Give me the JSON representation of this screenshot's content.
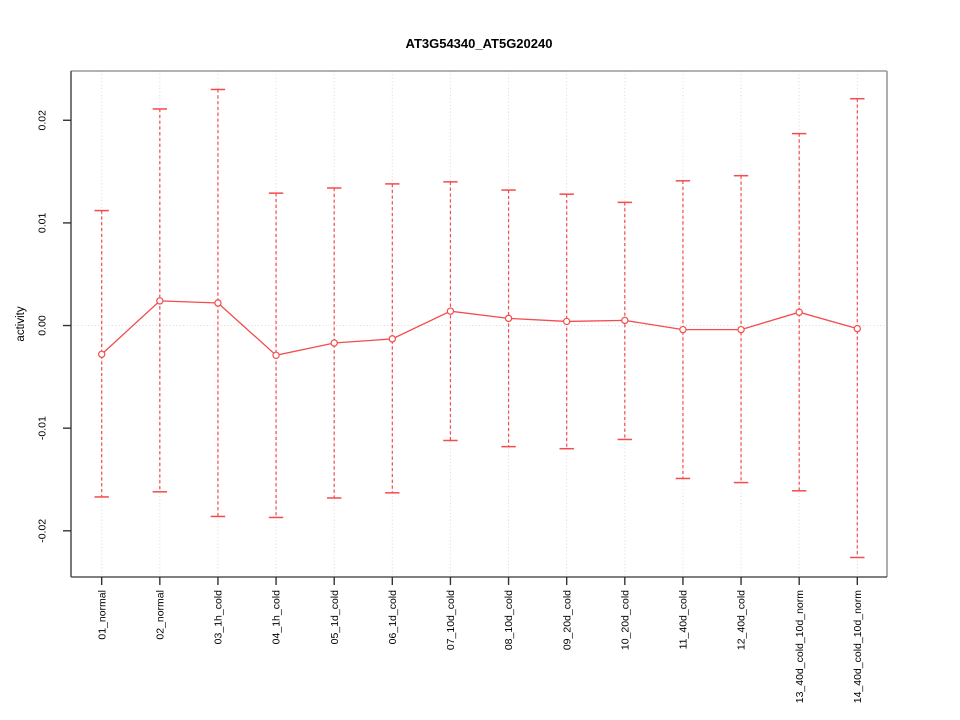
{
  "figure": {
    "background": "#ffffff"
  },
  "chart_data": {
    "type": "line",
    "subtype": "means-with-error-bars",
    "title": "AT3G54340_AT5G20240",
    "xlabel": "",
    "ylabel": "activity",
    "legend": "none",
    "grid": {
      "vertical": "dotted line at every category",
      "horizontal": "dotted line at y=0 only"
    },
    "categories": [
      "01_normal",
      "02_normal",
      "03_1h_cold",
      "04_1h_cold",
      "05_1d_cold",
      "06_1d_cold",
      "07_10d_cold",
      "08_10d_cold",
      "09_20d_cold",
      "10_20d_cold",
      "11_40d_cold",
      "12_40d_cold",
      "13_40d_cold_10d_norm",
      "14_40d_cold_10d_norm"
    ],
    "values": [
      -0.0028,
      0.0024,
      0.0022,
      -0.0029,
      -0.0017,
      -0.0013,
      0.0014,
      0.0007,
      0.0004,
      0.0005,
      -0.0004,
      -0.0004,
      0.0013,
      -0.0003
    ],
    "error_upper": [
      0.0112,
      0.0211,
      0.023,
      0.0129,
      0.0134,
      0.0138,
      0.014,
      0.0132,
      0.0128,
      0.012,
      0.0141,
      0.0146,
      0.0187,
      0.0221
    ],
    "error_lower": [
      -0.0167,
      -0.0162,
      -0.0186,
      -0.0187,
      -0.0168,
      -0.0163,
      -0.0112,
      -0.0118,
      -0.012,
      -0.0111,
      -0.0149,
      -0.0153,
      -0.0161,
      -0.0226
    ],
    "y_tick_labels": [
      "-0.02",
      "-0.01",
      "0.00",
      "0.01",
      "0.02"
    ],
    "y_tick_values": [
      -0.02,
      -0.01,
      0.0,
      0.01,
      0.02
    ],
    "ylim": [
      -0.0245,
      0.0248
    ],
    "colors": {
      "series": "#f44b4b",
      "grid": "#d9d9d9",
      "box_light": "#9a9a9a",
      "box_dark": "#565656",
      "tick": "#333333",
      "text": "#000000"
    }
  }
}
